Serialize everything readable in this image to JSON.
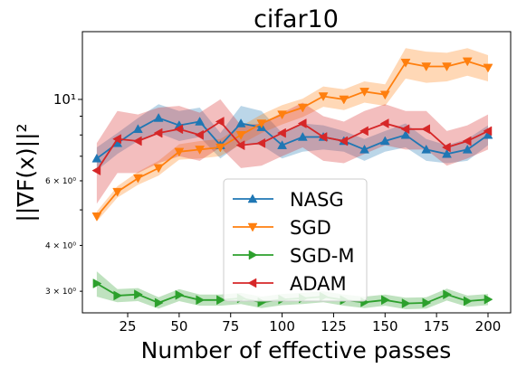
{
  "chart_data": {
    "type": "line",
    "title": "cifar10",
    "xlabel": "Number of effective passes",
    "ylabel": "||∇F(x)||²",
    "yscale": "log",
    "xlim": [
      3,
      211
    ],
    "ylim": [
      2.62,
      15.3
    ],
    "xticks": [
      25,
      50,
      75,
      100,
      125,
      150,
      175,
      200
    ],
    "yticks": [
      {
        "value": 10,
        "label": "10¹",
        "major": true
      },
      {
        "value": 6,
        "label": "6 × 10⁰",
        "major": false
      },
      {
        "value": 4,
        "label": "4 × 10⁰",
        "major": false
      },
      {
        "value": 3,
        "label": "3 × 10⁰",
        "major": false
      }
    ],
    "minor_ticks": [
      5,
      7,
      8,
      9
    ],
    "legend_position": "lower-center",
    "series": [
      {
        "name": "NASG",
        "color": "#1f77b4",
        "marker": "triangle-up",
        "x": [
          10,
          20,
          30,
          40,
          50,
          60,
          70,
          80,
          90,
          100,
          110,
          120,
          130,
          140,
          150,
          160,
          170,
          180,
          190,
          200
        ],
        "y": [
          6.9,
          7.6,
          8.3,
          8.9,
          8.5,
          8.7,
          7.5,
          8.6,
          8.4,
          7.5,
          7.9,
          7.9,
          7.7,
          7.3,
          7.7,
          8.0,
          7.3,
          7.1,
          7.3,
          8.0
        ],
        "band": [
          0.5,
          0.5,
          0.6,
          0.8,
          0.8,
          0.8,
          0.6,
          1.0,
          0.9,
          0.6,
          0.7,
          0.6,
          0.5,
          0.5,
          0.5,
          0.6,
          0.5,
          0.4,
          0.5,
          0.5
        ]
      },
      {
        "name": "SGD",
        "color": "#ff7f0e",
        "marker": "triangle-down",
        "x": [
          10,
          20,
          30,
          40,
          50,
          60,
          70,
          80,
          90,
          100,
          110,
          120,
          130,
          140,
          150,
          160,
          170,
          180,
          190,
          200
        ],
        "y": [
          4.8,
          5.6,
          6.1,
          6.5,
          7.2,
          7.3,
          7.4,
          8.0,
          8.6,
          9.1,
          9.5,
          10.2,
          10.0,
          10.5,
          10.3,
          12.6,
          12.3,
          12.3,
          12.7,
          12.2
        ],
        "band": [
          0.15,
          0.2,
          0.25,
          0.3,
          0.35,
          0.4,
          0.4,
          0.45,
          0.5,
          0.55,
          0.55,
          0.65,
          0.65,
          0.7,
          0.7,
          1.2,
          1.2,
          1.1,
          1.1,
          1.0
        ]
      },
      {
        "name": "SGD-M",
        "color": "#2ca02c",
        "marker": "triangle-right",
        "x": [
          10,
          20,
          30,
          40,
          50,
          60,
          70,
          80,
          90,
          100,
          110,
          120,
          130,
          140,
          150,
          160,
          170,
          180,
          190,
          200
        ],
        "y": [
          3.15,
          2.92,
          2.94,
          2.79,
          2.93,
          2.84,
          2.84,
          2.87,
          2.8,
          2.85,
          2.87,
          2.9,
          2.84,
          2.8,
          2.84,
          2.78,
          2.79,
          2.94,
          2.82,
          2.85
        ],
        "band": [
          0.25,
          0.12,
          0.12,
          0.1,
          0.11,
          0.1,
          0.1,
          0.1,
          0.1,
          0.1,
          0.1,
          0.1,
          0.1,
          0.1,
          0.1,
          0.1,
          0.1,
          0.11,
          0.1,
          0.1
        ]
      },
      {
        "name": "ADAM",
        "color": "#d62728",
        "marker": "triangle-left",
        "x": [
          10,
          20,
          30,
          40,
          50,
          60,
          70,
          80,
          90,
          100,
          110,
          120,
          130,
          140,
          150,
          160,
          170,
          180,
          190,
          200
        ],
        "y": [
          6.4,
          7.8,
          7.7,
          8.1,
          8.3,
          8.0,
          8.7,
          7.5,
          7.6,
          8.1,
          8.6,
          7.9,
          7.7,
          8.2,
          8.6,
          8.3,
          8.3,
          7.4,
          7.7,
          8.2
        ],
        "band": [
          1.2,
          1.5,
          1.4,
          1.4,
          1.3,
          1.2,
          1.3,
          1.0,
          1.0,
          1.1,
          1.2,
          1.1,
          1.0,
          1.1,
          1.1,
          1.0,
          1.0,
          0.8,
          0.8,
          0.9
        ]
      }
    ]
  }
}
